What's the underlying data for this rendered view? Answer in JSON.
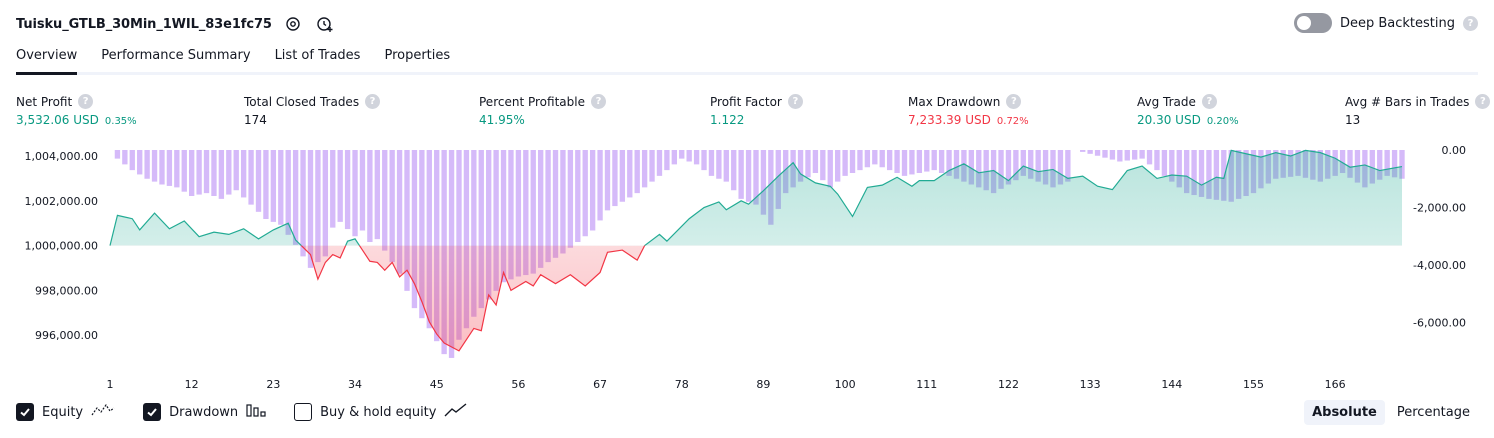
{
  "header": {
    "strategy_name": "Tuisku_GTLB_30Min_1WIL_83e1fc75",
    "deep_backtesting_label": "Deep Backtesting",
    "deep_backtesting_on": false,
    "help_glyph": "?"
  },
  "tabs": [
    {
      "label": "Overview",
      "active": true
    },
    {
      "label": "Performance Summary",
      "active": false
    },
    {
      "label": "List of Trades",
      "active": false
    },
    {
      "label": "Properties",
      "active": false
    }
  ],
  "metrics": [
    {
      "label": "Net Profit",
      "value": "3,532.06 USD",
      "sub": "0.35%",
      "tone": "green"
    },
    {
      "label": "Total Closed Trades",
      "value": "174",
      "sub": "",
      "tone": "neutral"
    },
    {
      "label": "Percent Profitable",
      "value": "41.95%",
      "sub": "",
      "tone": "green"
    },
    {
      "label": "Profit Factor",
      "value": "1.122",
      "sub": "",
      "tone": "green"
    },
    {
      "label": "Max Drawdown",
      "value": "7,233.39 USD",
      "sub": "0.72%",
      "tone": "red"
    },
    {
      "label": "Avg Trade",
      "value": "20.30 USD",
      "sub": "0.20%",
      "tone": "green"
    },
    {
      "label": "Avg # Bars in Trades",
      "value": "13",
      "sub": "",
      "tone": "neutral"
    }
  ],
  "legend": {
    "equity_label": "Equity",
    "equity_checked": true,
    "drawdown_label": "Drawdown",
    "drawdown_checked": true,
    "buyhold_label": "Buy & hold equity",
    "buyhold_checked": false
  },
  "mode": {
    "absolute_label": "Absolute",
    "percentage_label": "Percentage",
    "selected": "Absolute"
  },
  "colors": {
    "equity_line": "#22ab94",
    "equity_below": "#f23645",
    "drawdown_bar": "#c9a6f7",
    "accent_green": "#089981",
    "accent_red": "#f23645"
  },
  "chart_data": {
    "type": "area",
    "title": "",
    "baseline": 1000000,
    "left_axis": {
      "ticks": [
        "1,004,000.00",
        "1,002,000.00",
        "1,000,000.00",
        "998,000.00",
        "996,000.00"
      ],
      "tick_values": [
        1004000,
        1002000,
        1000000,
        998000,
        996000
      ],
      "ylim": [
        995000,
        1004300
      ]
    },
    "right_axis": {
      "ticks": [
        "0.00",
        "-2,000.00",
        "-4,000.00",
        "-6,000.00"
      ],
      "tick_values": [
        0,
        -2000,
        -4000,
        -6000
      ],
      "ylim": [
        -7900,
        0
      ]
    },
    "x_axis": {
      "ticks": [
        "1",
        "12",
        "23",
        "34",
        "45",
        "56",
        "67",
        "78",
        "89",
        "100",
        "111",
        "122",
        "133",
        "144",
        "155",
        "166"
      ],
      "tick_values": [
        1,
        12,
        23,
        34,
        45,
        56,
        67,
        78,
        89,
        100,
        111,
        122,
        133,
        144,
        155,
        166
      ],
      "xlim": [
        1,
        175
      ]
    },
    "equity_keypoints": [
      {
        "x": 1,
        "y": 1000000
      },
      {
        "x": 2,
        "y": 1001350
      },
      {
        "x": 4,
        "y": 1001200
      },
      {
        "x": 5,
        "y": 1000700
      },
      {
        "x": 7,
        "y": 1001450
      },
      {
        "x": 9,
        "y": 1000750
      },
      {
        "x": 11,
        "y": 1001100
      },
      {
        "x": 13,
        "y": 1000400
      },
      {
        "x": 15,
        "y": 1000600
      },
      {
        "x": 17,
        "y": 1000500
      },
      {
        "x": 19,
        "y": 1000750
      },
      {
        "x": 21,
        "y": 1000300
      },
      {
        "x": 23,
        "y": 1000700
      },
      {
        "x": 25,
        "y": 1001000
      },
      {
        "x": 26,
        "y": 1000250
      },
      {
        "x": 28,
        "y": 999600
      },
      {
        "x": 29,
        "y": 998500
      },
      {
        "x": 30,
        "y": 999250
      },
      {
        "x": 31,
        "y": 999600
      },
      {
        "x": 32,
        "y": 999450
      },
      {
        "x": 33,
        "y": 1000200
      },
      {
        "x": 34,
        "y": 1000300
      },
      {
        "x": 35,
        "y": 999800
      },
      {
        "x": 36,
        "y": 999300
      },
      {
        "x": 37,
        "y": 999250
      },
      {
        "x": 38,
        "y": 998900
      },
      {
        "x": 39,
        "y": 999250
      },
      {
        "x": 40,
        "y": 998600
      },
      {
        "x": 41,
        "y": 998900
      },
      {
        "x": 42,
        "y": 998300
      },
      {
        "x": 43,
        "y": 997500
      },
      {
        "x": 44,
        "y": 996600
      },
      {
        "x": 45,
        "y": 996050
      },
      {
        "x": 46,
        "y": 995650
      },
      {
        "x": 48,
        "y": 995300
      },
      {
        "x": 50,
        "y": 996300
      },
      {
        "x": 51,
        "y": 996200
      },
      {
        "x": 52,
        "y": 997800
      },
      {
        "x": 53,
        "y": 997350
      },
      {
        "x": 54,
        "y": 998800
      },
      {
        "x": 55,
        "y": 998000
      },
      {
        "x": 57,
        "y": 998400
      },
      {
        "x": 58,
        "y": 998200
      },
      {
        "x": 59,
        "y": 998700
      },
      {
        "x": 61,
        "y": 998300
      },
      {
        "x": 63,
        "y": 998700
      },
      {
        "x": 65,
        "y": 998200
      },
      {
        "x": 67,
        "y": 998800
      },
      {
        "x": 68,
        "y": 999700
      },
      {
        "x": 70,
        "y": 999800
      },
      {
        "x": 72,
        "y": 999350
      },
      {
        "x": 73,
        "y": 1000000
      },
      {
        "x": 75,
        "y": 1000500
      },
      {
        "x": 76,
        "y": 1000200
      },
      {
        "x": 79,
        "y": 1001200
      },
      {
        "x": 81,
        "y": 1001700
      },
      {
        "x": 83,
        "y": 1001950
      },
      {
        "x": 84,
        "y": 1001600
      },
      {
        "x": 86,
        "y": 1002000
      },
      {
        "x": 87,
        "y": 1001850
      },
      {
        "x": 89,
        "y": 1002450
      },
      {
        "x": 91,
        "y": 1003100
      },
      {
        "x": 93,
        "y": 1003700
      },
      {
        "x": 94,
        "y": 1003200
      },
      {
        "x": 96,
        "y": 1002800
      },
      {
        "x": 98,
        "y": 1002650
      },
      {
        "x": 99,
        "y": 1002300
      },
      {
        "x": 101,
        "y": 1001300
      },
      {
        "x": 103,
        "y": 1002600
      },
      {
        "x": 105,
        "y": 1002700
      },
      {
        "x": 107,
        "y": 1003050
      },
      {
        "x": 109,
        "y": 1002650
      },
      {
        "x": 110,
        "y": 1002900
      },
      {
        "x": 112,
        "y": 1002900
      },
      {
        "x": 114,
        "y": 1003350
      },
      {
        "x": 116,
        "y": 1003650
      },
      {
        "x": 118,
        "y": 1003250
      },
      {
        "x": 120,
        "y": 1003350
      },
      {
        "x": 122,
        "y": 1002900
      },
      {
        "x": 124,
        "y": 1003550
      },
      {
        "x": 126,
        "y": 1003300
      },
      {
        "x": 128,
        "y": 1003400
      },
      {
        "x": 130,
        "y": 1003000
      },
      {
        "x": 132,
        "y": 1003100
      },
      {
        "x": 134,
        "y": 1002650
      },
      {
        "x": 136,
        "y": 1002500
      },
      {
        "x": 138,
        "y": 1003350
      },
      {
        "x": 140,
        "y": 1003550
      },
      {
        "x": 142,
        "y": 1003000
      },
      {
        "x": 144,
        "y": 1003150
      },
      {
        "x": 146,
        "y": 1003100
      },
      {
        "x": 148,
        "y": 1002700
      },
      {
        "x": 150,
        "y": 1003050
      },
      {
        "x": 151,
        "y": 1003000
      },
      {
        "x": 152,
        "y": 1004250
      },
      {
        "x": 154,
        "y": 1004100
      },
      {
        "x": 156,
        "y": 1003950
      },
      {
        "x": 158,
        "y": 1004150
      },
      {
        "x": 160,
        "y": 1004000
      },
      {
        "x": 162,
        "y": 1004250
      },
      {
        "x": 164,
        "y": 1004150
      },
      {
        "x": 166,
        "y": 1003900
      },
      {
        "x": 168,
        "y": 1003500
      },
      {
        "x": 170,
        "y": 1003600
      },
      {
        "x": 172,
        "y": 1003350
      },
      {
        "x": 175,
        "y": 1003530
      }
    ],
    "drawdown_keypoints": [
      {
        "x": 1,
        "y": 0
      },
      {
        "x": 2,
        "y": -300
      },
      {
        "x": 4,
        "y": -700
      },
      {
        "x": 6,
        "y": -1000
      },
      {
        "x": 8,
        "y": -1200
      },
      {
        "x": 10,
        "y": -1300
      },
      {
        "x": 12,
        "y": -1600
      },
      {
        "x": 14,
        "y": -1500
      },
      {
        "x": 16,
        "y": -1700
      },
      {
        "x": 18,
        "y": -1400
      },
      {
        "x": 20,
        "y": -1900
      },
      {
        "x": 22,
        "y": -2400
      },
      {
        "x": 24,
        "y": -2600
      },
      {
        "x": 26,
        "y": -3300
      },
      {
        "x": 28,
        "y": -4100
      },
      {
        "x": 30,
        "y": -3700
      },
      {
        "x": 31,
        "y": -2700
      },
      {
        "x": 32,
        "y": -2500
      },
      {
        "x": 34,
        "y": -3000
      },
      {
        "x": 35,
        "y": -2800
      },
      {
        "x": 36,
        "y": -3200
      },
      {
        "x": 37,
        "y": -3100
      },
      {
        "x": 38,
        "y": -3500
      },
      {
        "x": 40,
        "y": -4300
      },
      {
        "x": 42,
        "y": -5500
      },
      {
        "x": 44,
        "y": -6200
      },
      {
        "x": 46,
        "y": -7100
      },
      {
        "x": 47,
        "y": -7233
      },
      {
        "x": 48,
        "y": -6600
      },
      {
        "x": 50,
        "y": -5800
      },
      {
        "x": 52,
        "y": -5200
      },
      {
        "x": 54,
        "y": -4600
      },
      {
        "x": 56,
        "y": -4400
      },
      {
        "x": 58,
        "y": -4300
      },
      {
        "x": 60,
        "y": -3900
      },
      {
        "x": 62,
        "y": -3600
      },
      {
        "x": 64,
        "y": -3200
      },
      {
        "x": 66,
        "y": -2800
      },
      {
        "x": 68,
        "y": -2100
      },
      {
        "x": 70,
        "y": -1800
      },
      {
        "x": 72,
        "y": -1500
      },
      {
        "x": 74,
        "y": -1100
      },
      {
        "x": 76,
        "y": -700
      },
      {
        "x": 78,
        "y": -300
      },
      {
        "x": 80,
        "y": -500
      },
      {
        "x": 82,
        "y": -900
      },
      {
        "x": 84,
        "y": -1100
      },
      {
        "x": 86,
        "y": -1700
      },
      {
        "x": 88,
        "y": -1900
      },
      {
        "x": 90,
        "y": -2600
      },
      {
        "x": 92,
        "y": -1500
      },
      {
        "x": 94,
        "y": -1100
      },
      {
        "x": 96,
        "y": -800
      },
      {
        "x": 98,
        "y": -1300
      },
      {
        "x": 100,
        "y": -900
      },
      {
        "x": 104,
        "y": -500
      },
      {
        "x": 108,
        "y": -900
      },
      {
        "x": 112,
        "y": -700
      },
      {
        "x": 116,
        "y": -1100
      },
      {
        "x": 120,
        "y": -1500
      },
      {
        "x": 124,
        "y": -900
      },
      {
        "x": 128,
        "y": -1300
      },
      {
        "x": 130,
        "y": -1100
      },
      {
        "x": 131,
        "y": 0
      },
      {
        "x": 134,
        "y": -200
      },
      {
        "x": 137,
        "y": -400
      },
      {
        "x": 140,
        "y": -300
      },
      {
        "x": 143,
        "y": -900
      },
      {
        "x": 146,
        "y": -1500
      },
      {
        "x": 149,
        "y": -1700
      },
      {
        "x": 152,
        "y": -1800
      },
      {
        "x": 155,
        "y": -1500
      },
      {
        "x": 158,
        "y": -1000
      },
      {
        "x": 161,
        "y": -900
      },
      {
        "x": 164,
        "y": -1100
      },
      {
        "x": 167,
        "y": -800
      },
      {
        "x": 170,
        "y": -1300
      },
      {
        "x": 173,
        "y": -900
      },
      {
        "x": 175,
        "y": -1000
      }
    ]
  }
}
